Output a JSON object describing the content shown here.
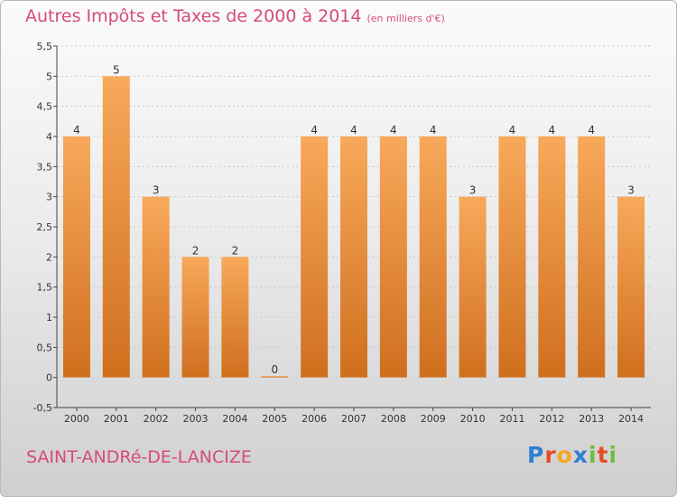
{
  "header": {
    "title": "Autres Impôts et Taxes de 2000 à 2014",
    "subtitle": "(en milliers d'€)"
  },
  "footer": {
    "commune": "SAINT-ANDRé-DE-LANCIZE",
    "logo_letters": [
      "P",
      "r",
      "o",
      "x",
      "i",
      "t",
      "i"
    ]
  },
  "colors": {
    "title": "#d64a7f",
    "bar_light": "#f8a95a",
    "bar_dark": "#cf6f1e",
    "axis": "#444444",
    "gridline": "#c8c8c8",
    "logo": [
      "#2e7fd0",
      "#e84b2a",
      "#f5a623",
      "#2e7fd0",
      "#6cbf3a",
      "#e84b2a",
      "#6cbf3a"
    ]
  },
  "chart_data": {
    "type": "bar",
    "title": "Autres Impôts et Taxes de 2000 à 2014",
    "categories": [
      "2000",
      "2001",
      "2002",
      "2003",
      "2004",
      "2005",
      "2006",
      "2007",
      "2008",
      "2009",
      "2010",
      "2011",
      "2012",
      "2013",
      "2014"
    ],
    "values": [
      4,
      5,
      3,
      2,
      2,
      0,
      4,
      4,
      4,
      4,
      3,
      4,
      4,
      4,
      3
    ],
    "data_labels": [
      "4",
      "5",
      "3",
      "2",
      "2",
      "0",
      "4",
      "4",
      "4",
      "4",
      "3",
      "4",
      "4",
      "4",
      "3"
    ],
    "yticks": [
      -0.5,
      0,
      0.5,
      1,
      1.5,
      2,
      2.5,
      3,
      3.5,
      4,
      4.5,
      5,
      5.5
    ],
    "ytick_labels": [
      "-0,5",
      "0",
      "0,5",
      "1",
      "1,5",
      "2",
      "2,5",
      "3",
      "3,5",
      "4",
      "4,5",
      "5",
      "5,5"
    ],
    "ylim": [
      -0.5,
      5.5
    ],
    "grid": true,
    "legend": "none"
  }
}
